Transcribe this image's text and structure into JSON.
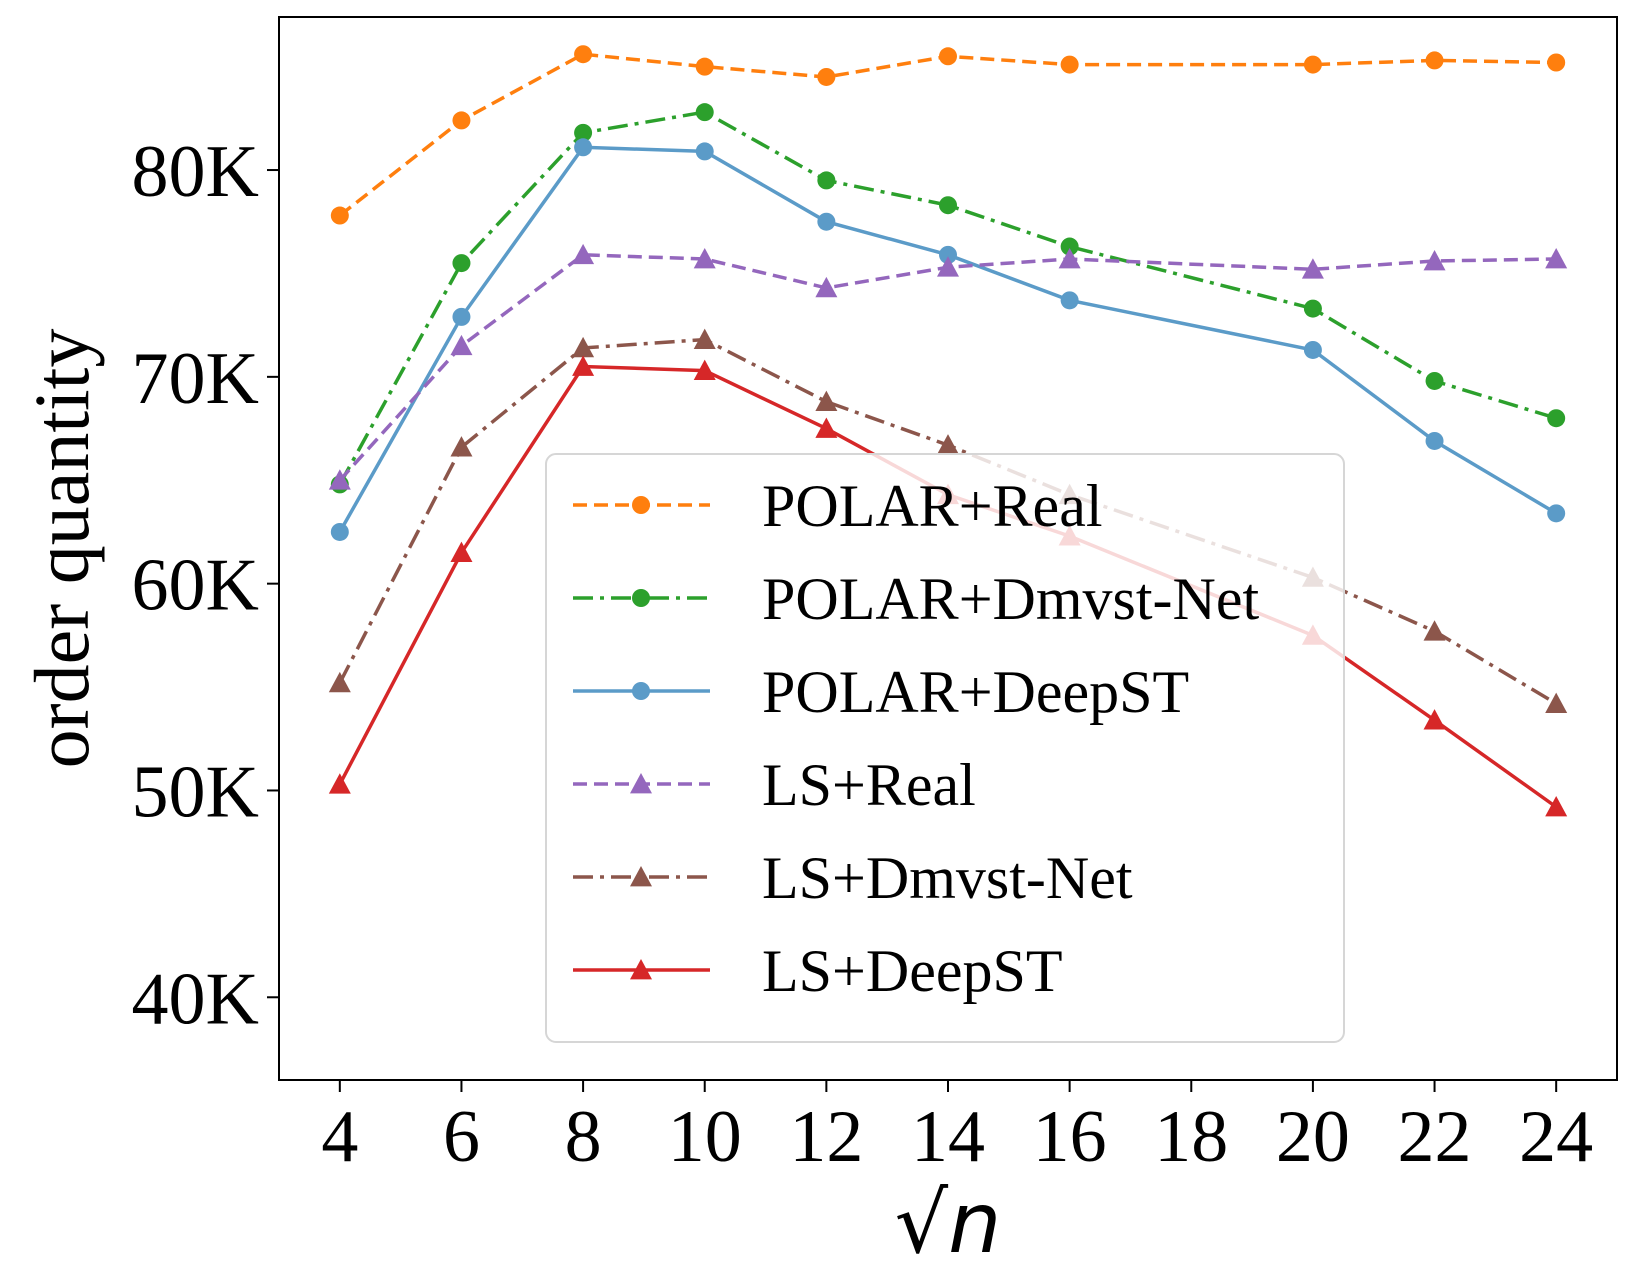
{
  "chart_data": {
    "type": "line",
    "title": "",
    "xlabel": "√n",
    "ylabel": "order quantity",
    "xlim": [
      3,
      25
    ],
    "ylim": [
      36000,
      87400
    ],
    "x_ticks": [
      4,
      6,
      8,
      10,
      12,
      14,
      16,
      18,
      20,
      22,
      24
    ],
    "x_tick_labels": [
      "4",
      "6",
      "8",
      "10",
      "12",
      "14",
      "16",
      "18",
      "20",
      "22",
      "24"
    ],
    "y_ticks": [
      40000,
      50000,
      60000,
      70000,
      80000
    ],
    "y_tick_labels": [
      "40K",
      "50K",
      "60K",
      "70K",
      "80K"
    ],
    "grid": false,
    "legend_position": "center",
    "series": [
      {
        "name": "POLAR+Real",
        "color": "#ff7f0e",
        "dash": "dashed",
        "marker": "circle",
        "x": [
          4,
          6,
          8,
          10,
          12,
          14,
          16,
          20,
          22,
          24
        ],
        "y": [
          77800,
          82400,
          85600,
          85000,
          84500,
          85500,
          85100,
          85100,
          85300,
          85200
        ]
      },
      {
        "name": "POLAR+Dmvst-Net",
        "color": "#2ca02c",
        "dash": "dashdot",
        "marker": "circle",
        "x": [
          4,
          6,
          8,
          10,
          12,
          14,
          16,
          20,
          22,
          24
        ],
        "y": [
          64800,
          75500,
          81800,
          82800,
          79500,
          78300,
          76300,
          73300,
          69800,
          68000
        ]
      },
      {
        "name": "POLAR+DeepST",
        "color": "#5b9bc8",
        "dash": "solid",
        "marker": "circle",
        "x": [
          4,
          6,
          8,
          10,
          12,
          14,
          16,
          20,
          22,
          24
        ],
        "y": [
          62500,
          72900,
          81100,
          80900,
          77500,
          75900,
          73700,
          71300,
          66900,
          63400
        ]
      },
      {
        "name": "LS+Real",
        "color": "#9467bd",
        "dash": "dashed",
        "marker": "triangle",
        "x": [
          4,
          6,
          8,
          10,
          12,
          14,
          16,
          20,
          22,
          24
        ],
        "y": [
          65000,
          71500,
          75900,
          75700,
          74300,
          75300,
          75700,
          75200,
          75600,
          75700
        ]
      },
      {
        "name": "LS+Dmvst-Net",
        "color": "#8c564b",
        "dash": "dashdot",
        "marker": "triangle",
        "x": [
          4,
          6,
          8,
          10,
          12,
          14,
          16,
          20,
          22,
          24
        ],
        "y": [
          55200,
          66600,
          71400,
          71800,
          68800,
          66700,
          64300,
          60300,
          57700,
          54200
        ]
      },
      {
        "name": "LS+DeepST",
        "color": "#d62728",
        "dash": "solid",
        "marker": "triangle",
        "x": [
          4,
          6,
          8,
          10,
          12,
          14,
          16,
          20,
          22,
          24
        ],
        "y": [
          50300,
          61500,
          70500,
          70300,
          67500,
          64300,
          62300,
          57500,
          53400,
          49200
        ]
      }
    ]
  }
}
